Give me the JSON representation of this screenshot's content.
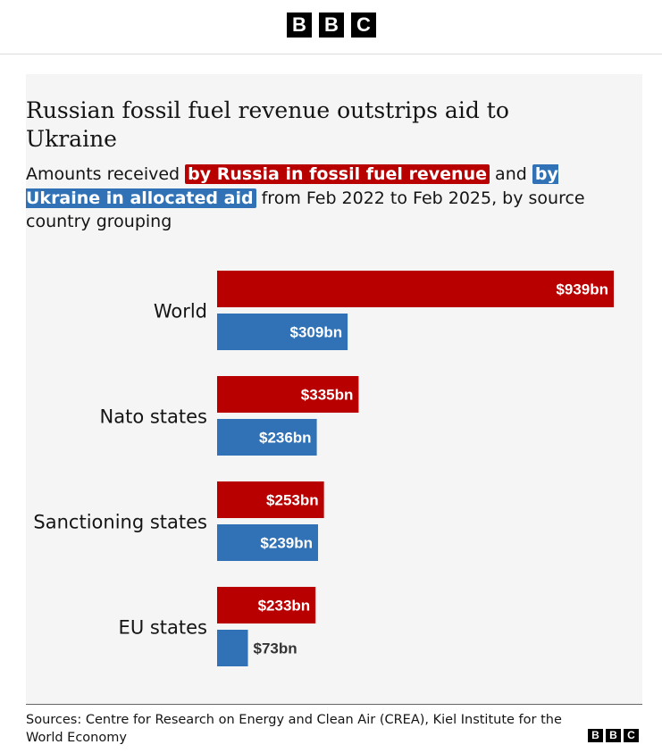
{
  "logo": [
    "B",
    "B",
    "C"
  ],
  "chart_data": {
    "type": "bar",
    "orientation": "horizontal",
    "title": "Russian fossil fuel revenue outstrips aid to Ukraine",
    "subtitle_prefix": "Amounts received",
    "subtitle_connector": "and",
    "subtitle_suffix": "from Feb 2022 to Feb 2025, by source country grouping",
    "categories": [
      "World",
      "Nato states",
      "Sanctioning states",
      "EU states"
    ],
    "series": [
      {
        "name": "by Russia in fossil fuel revenue",
        "color": "#b80000",
        "values": [
          939,
          335,
          253,
          233
        ],
        "value_labels": [
          "$939bn",
          "$335bn",
          "$253bn",
          "$233bn"
        ]
      },
      {
        "name": "by Ukraine in allocated aid",
        "color": "#3072b5",
        "values": [
          309,
          236,
          239,
          73
        ],
        "value_labels": [
          "$309bn",
          "$236bn",
          "$239bn",
          "$73bn"
        ]
      }
    ],
    "source": "Sources: Centre for Research on Energy and Clean Air (CREA), Kiel Institute for the World Economy"
  }
}
